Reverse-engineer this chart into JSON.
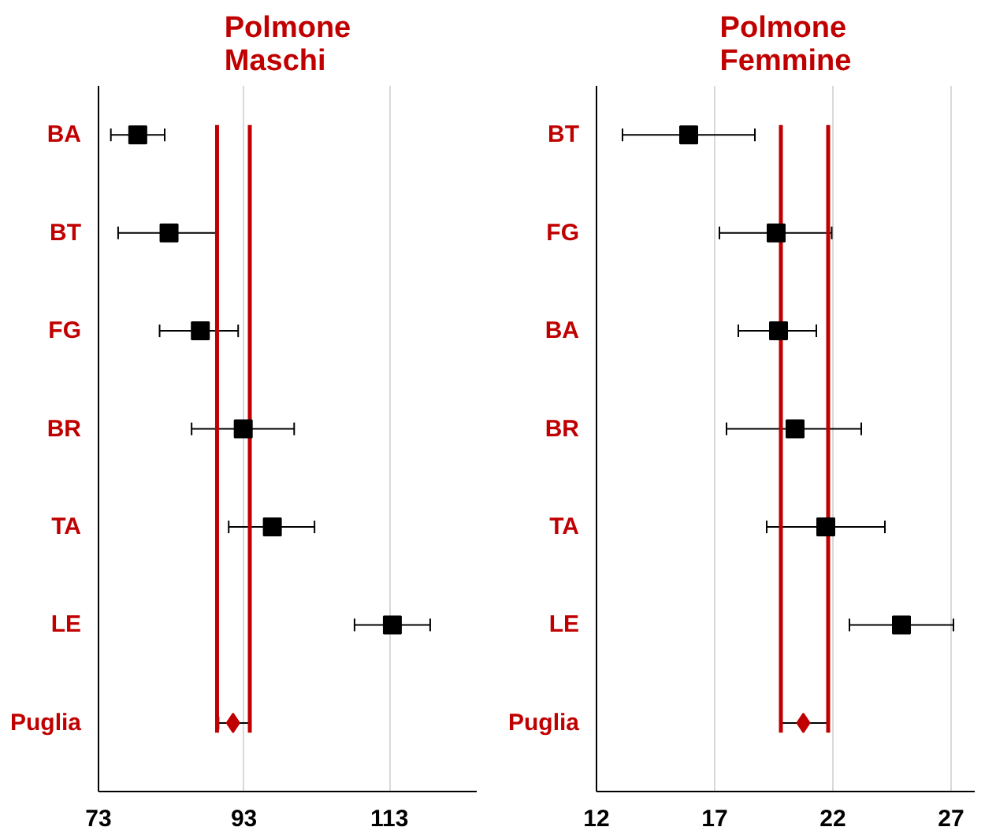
{
  "chart_data": [
    {
      "type": "scatter",
      "orientation": "horizontal",
      "title": "Polmone\nMaschi",
      "categories": [
        "BA",
        "BT",
        "FG",
        "BR",
        "TA",
        "LE",
        "Puglia"
      ],
      "series": [
        {
          "color": "#000000",
          "marker": "square",
          "values": [
            78.4,
            82.7,
            87.0,
            92.9,
            96.9,
            113.4,
            null
          ],
          "errors": [
            [
              74.7,
              82.1
            ],
            [
              75.7,
              89.2
            ],
            [
              81.4,
              92.2
            ],
            [
              85.8,
              99.9
            ],
            [
              90.9,
              102.7
            ],
            [
              108.2,
              118.6
            ],
            null
          ]
        },
        {
          "color": "#c00000",
          "marker": "diamond",
          "values": [
            null,
            null,
            null,
            null,
            null,
            null,
            91.5
          ],
          "errors": [
            null,
            null,
            null,
            null,
            null,
            null,
            [
              89.5,
              93.7
            ]
          ]
        }
      ],
      "ref_lines": [
        {
          "axis": "x",
          "value": 89.3,
          "color": "#c00000"
        },
        {
          "axis": "x",
          "value": 93.8,
          "color": "#c00000"
        }
      ],
      "xlim": [
        73,
        125
      ],
      "xticks": [
        73,
        93,
        113
      ],
      "grid": "x"
    },
    {
      "type": "scatter",
      "orientation": "horizontal",
      "title": "Polmone\nFemmine",
      "categories": [
        "BT",
        "FG",
        "BA",
        "BR",
        "TA",
        "LE",
        "Puglia"
      ],
      "series": [
        {
          "color": "#000000",
          "marker": "square",
          "values": [
            15.9,
            19.6,
            19.7,
            20.4,
            21.7,
            24.9,
            null
          ],
          "errors": [
            [
              13.1,
              18.7
            ],
            [
              17.2,
              21.95
            ],
            [
              18.0,
              21.3
            ],
            [
              17.5,
              23.2
            ],
            [
              19.2,
              24.2
            ],
            [
              22.7,
              27.1
            ],
            null
          ]
        },
        {
          "color": "#c00000",
          "marker": "diamond",
          "values": [
            null,
            null,
            null,
            null,
            null,
            null,
            20.75
          ],
          "errors": [
            null,
            null,
            null,
            null,
            null,
            null,
            [
              19.8,
              21.8
            ]
          ]
        }
      ],
      "ref_lines": [
        {
          "axis": "x",
          "value": 19.8,
          "color": "#c00000"
        },
        {
          "axis": "x",
          "value": 21.8,
          "color": "#c00000"
        }
      ],
      "xlim": [
        12,
        28
      ],
      "xticks": [
        12,
        17,
        22,
        27
      ],
      "grid": "x"
    }
  ]
}
